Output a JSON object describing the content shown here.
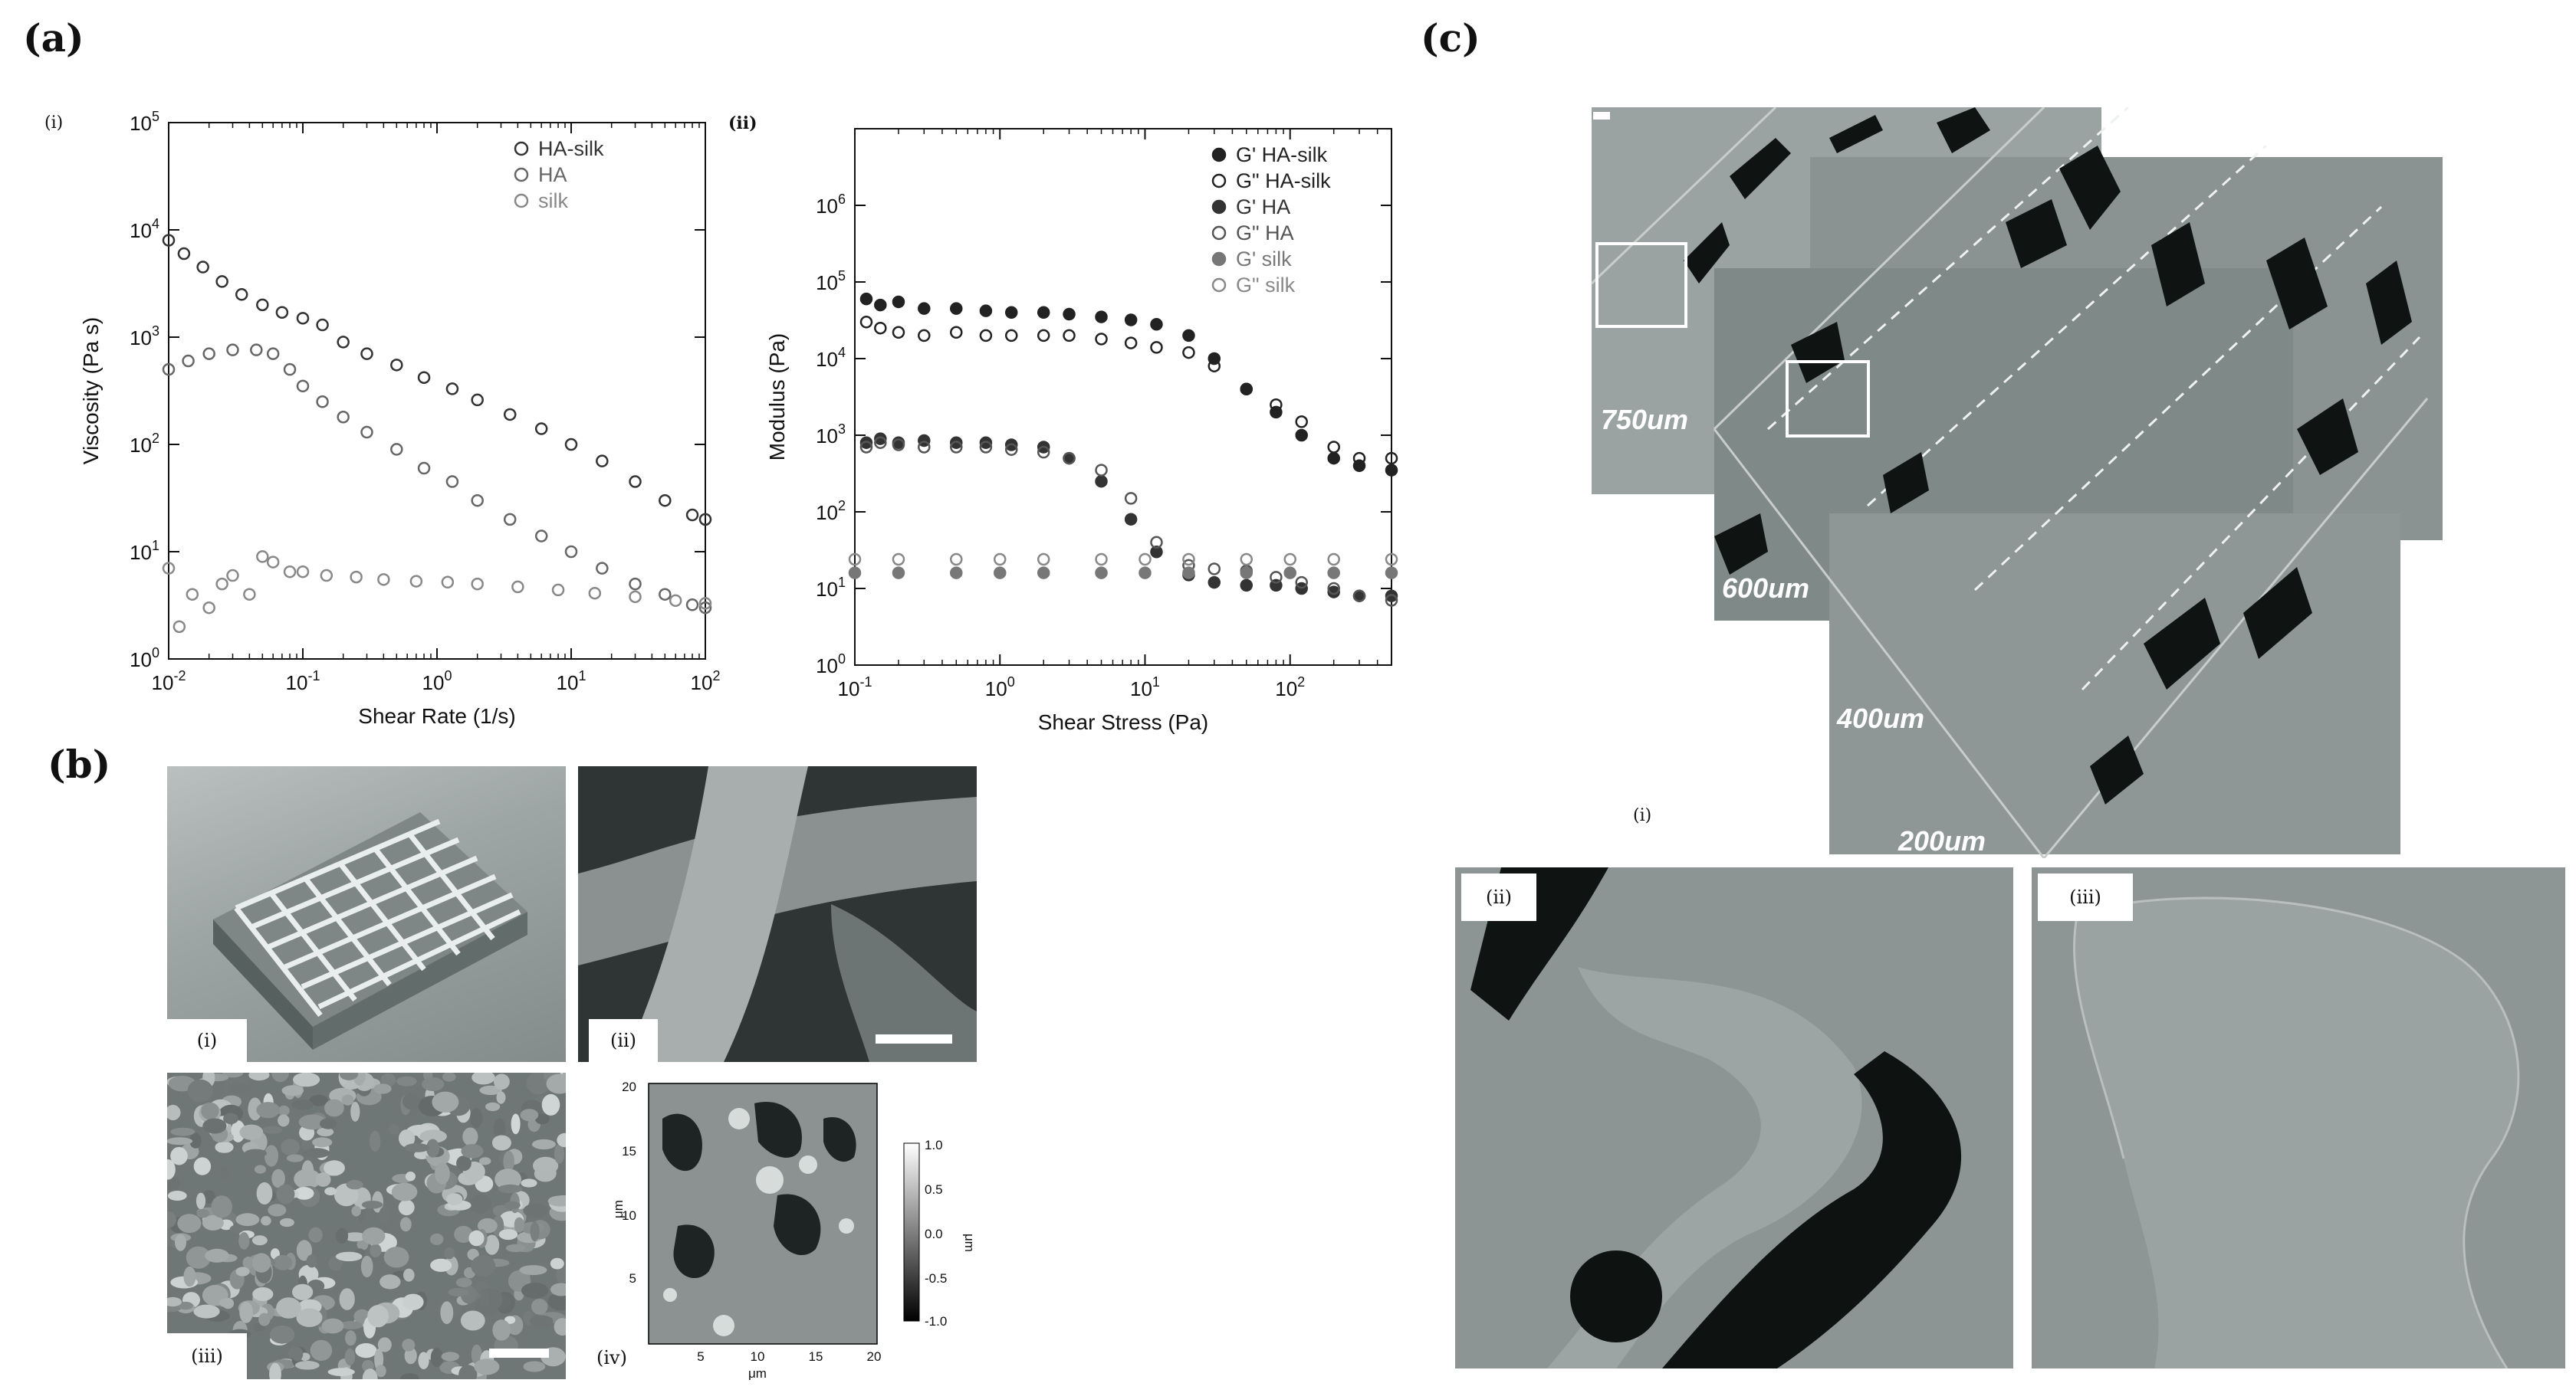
{
  "panels": {
    "a": {
      "label": "(a)"
    },
    "b": {
      "label": "(b)"
    },
    "c": {
      "label": "(c)"
    }
  },
  "sublabels": {
    "a_i": "(i)",
    "a_ii": "(ii)",
    "b_i": "(i)",
    "b_ii": "(ii)",
    "b_iii": "(iii)",
    "b_iv": "(iv)",
    "c_i": "(i)",
    "c_ii": "(ii)",
    "c_iii": "(iii)"
  },
  "chart_data": [
    {
      "type": "scatter",
      "xlabel": "Shear Rate (1/s)",
      "ylabel": "Viscosity (Pa s)",
      "xscale": "log",
      "yscale": "log",
      "xlim": [
        0.01,
        100
      ],
      "ylim": [
        1,
        100000
      ],
      "xticks": [
        "10-2",
        "10-1",
        "100",
        "101",
        "102"
      ],
      "yticks": [
        "100",
        "101",
        "102",
        "103",
        "104",
        "105"
      ],
      "legend_position": "top-right",
      "series": [
        {
          "name": "HA-silk",
          "color": "#333333",
          "marker": "open-circle",
          "x": [
            0.01,
            0.013,
            0.018,
            0.025,
            0.035,
            0.05,
            0.07,
            0.1,
            0.14,
            0.2,
            0.3,
            0.5,
            0.8,
            1.3,
            2,
            3.5,
            6,
            10,
            17,
            30,
            50,
            80,
            100
          ],
          "y": [
            8000,
            6000,
            4500,
            3300,
            2500,
            2000,
            1700,
            1500,
            1300,
            900,
            700,
            550,
            420,
            330,
            260,
            190,
            140,
            100,
            70,
            45,
            30,
            22,
            20
          ]
        },
        {
          "name": "HA",
          "color": "#666666",
          "marker": "open-circle",
          "x": [
            0.01,
            0.014,
            0.02,
            0.03,
            0.045,
            0.06,
            0.08,
            0.1,
            0.14,
            0.2,
            0.3,
            0.5,
            0.8,
            1.3,
            2,
            3.5,
            6,
            10,
            17,
            30,
            50,
            80,
            100
          ],
          "y": [
            500,
            600,
            700,
            760,
            760,
            700,
            500,
            350,
            250,
            180,
            130,
            90,
            60,
            45,
            30,
            20,
            14,
            10,
            7,
            5,
            4,
            3.2,
            3
          ]
        },
        {
          "name": "silk",
          "color": "#888888",
          "marker": "open-circle",
          "x": [
            0.01,
            0.012,
            0.015,
            0.02,
            0.025,
            0.03,
            0.04,
            0.05,
            0.06,
            0.08,
            0.1,
            0.15,
            0.25,
            0.4,
            0.7,
            1.2,
            2,
            4,
            8,
            15,
            30,
            60,
            100
          ],
          "y": [
            7,
            2,
            4,
            3,
            5,
            6,
            4,
            9,
            8,
            6.5,
            6.5,
            6,
            5.8,
            5.5,
            5.3,
            5.2,
            5,
            4.7,
            4.4,
            4.1,
            3.8,
            3.5,
            3.3
          ]
        }
      ]
    },
    {
      "type": "scatter",
      "xlabel": "Shear Stress (Pa)",
      "ylabel": "Modulus (Pa)",
      "xscale": "log",
      "yscale": "log",
      "xlim": [
        0.1,
        500
      ],
      "ylim": [
        1,
        10000000
      ],
      "xticks": [
        "10-1",
        "100",
        "101",
        "102"
      ],
      "yticks": [
        "100",
        "101",
        "102",
        "103",
        "104",
        "105",
        "106"
      ],
      "legend_position": "top-right",
      "series": [
        {
          "name": "G' HA-silk",
          "color": "#222222",
          "marker": "filled-circle",
          "x": [
            0.12,
            0.15,
            0.2,
            0.3,
            0.5,
            0.8,
            1.2,
            2,
            3,
            5,
            8,
            12,
            20,
            30,
            50,
            80,
            120,
            200,
            300,
            500
          ],
          "y": [
            60000,
            50000,
            55000,
            45000,
            45000,
            42000,
            40000,
            40000,
            38000,
            35000,
            32000,
            28000,
            20000,
            10000,
            4000,
            2000,
            1000,
            500,
            400,
            350
          ]
        },
        {
          "name": "G\" HA-silk",
          "color": "#222222",
          "marker": "open-circle",
          "x": [
            0.12,
            0.15,
            0.2,
            0.3,
            0.5,
            0.8,
            1.2,
            2,
            3,
            5,
            8,
            12,
            20,
            30,
            50,
            80,
            120,
            200,
            300,
            500
          ],
          "y": [
            30000,
            25000,
            22000,
            20000,
            22000,
            20000,
            20000,
            20000,
            20000,
            18000,
            16000,
            14000,
            12000,
            8000,
            4000,
            2500,
            1500,
            700,
            500,
            500
          ]
        },
        {
          "name": "G' HA",
          "color": "#333333",
          "marker": "filled-circle",
          "x": [
            0.12,
            0.15,
            0.2,
            0.3,
            0.5,
            0.8,
            1.2,
            2,
            3,
            5,
            8,
            12,
            20,
            30,
            50,
            80,
            120,
            200,
            300,
            500
          ],
          "y": [
            800,
            900,
            800,
            850,
            800,
            800,
            750,
            700,
            500,
            250,
            80,
            30,
            15,
            12,
            11,
            11,
            10,
            9,
            8,
            8
          ]
        },
        {
          "name": "G\" HA",
          "color": "#555555",
          "marker": "open-circle",
          "x": [
            0.12,
            0.15,
            0.2,
            0.3,
            0.5,
            0.8,
            1.2,
            2,
            3,
            5,
            8,
            12,
            20,
            30,
            50,
            80,
            120,
            200,
            300,
            500
          ],
          "y": [
            700,
            800,
            750,
            700,
            700,
            700,
            650,
            600,
            500,
            350,
            150,
            40,
            20,
            18,
            17,
            14,
            12,
            10,
            8,
            7
          ]
        },
        {
          "name": "G' silk",
          "color": "#777777",
          "marker": "filled-circle",
          "x": [
            0.1,
            0.2,
            0.5,
            1,
            2,
            5,
            10,
            20,
            50,
            100,
            200,
            500
          ],
          "y": [
            16,
            16,
            16,
            16,
            16,
            16,
            16,
            16,
            16,
            16,
            16,
            16
          ]
        },
        {
          "name": "G\" silk",
          "color": "#888888",
          "marker": "open-circle",
          "x": [
            0.1,
            0.2,
            0.5,
            1,
            2,
            5,
            10,
            20,
            50,
            100,
            200,
            500
          ],
          "y": [
            24,
            24,
            24,
            24,
            24,
            24,
            24,
            24,
            24,
            24,
            24,
            24
          ]
        }
      ]
    }
  ],
  "afm": {
    "ylabel": "μm",
    "xlabel": "μm",
    "xticks": [
      "5",
      "10",
      "15",
      "20"
    ],
    "yticks": [
      "5",
      "10",
      "15",
      "20"
    ],
    "colorbar_ticks": [
      "1.0",
      "0.5",
      "0.0",
      "-0.5",
      "-1.0"
    ],
    "colorbar_label": "μm"
  },
  "micrograph": {
    "distance_labels": [
      "750um",
      "600um",
      "400um",
      "200um"
    ]
  }
}
